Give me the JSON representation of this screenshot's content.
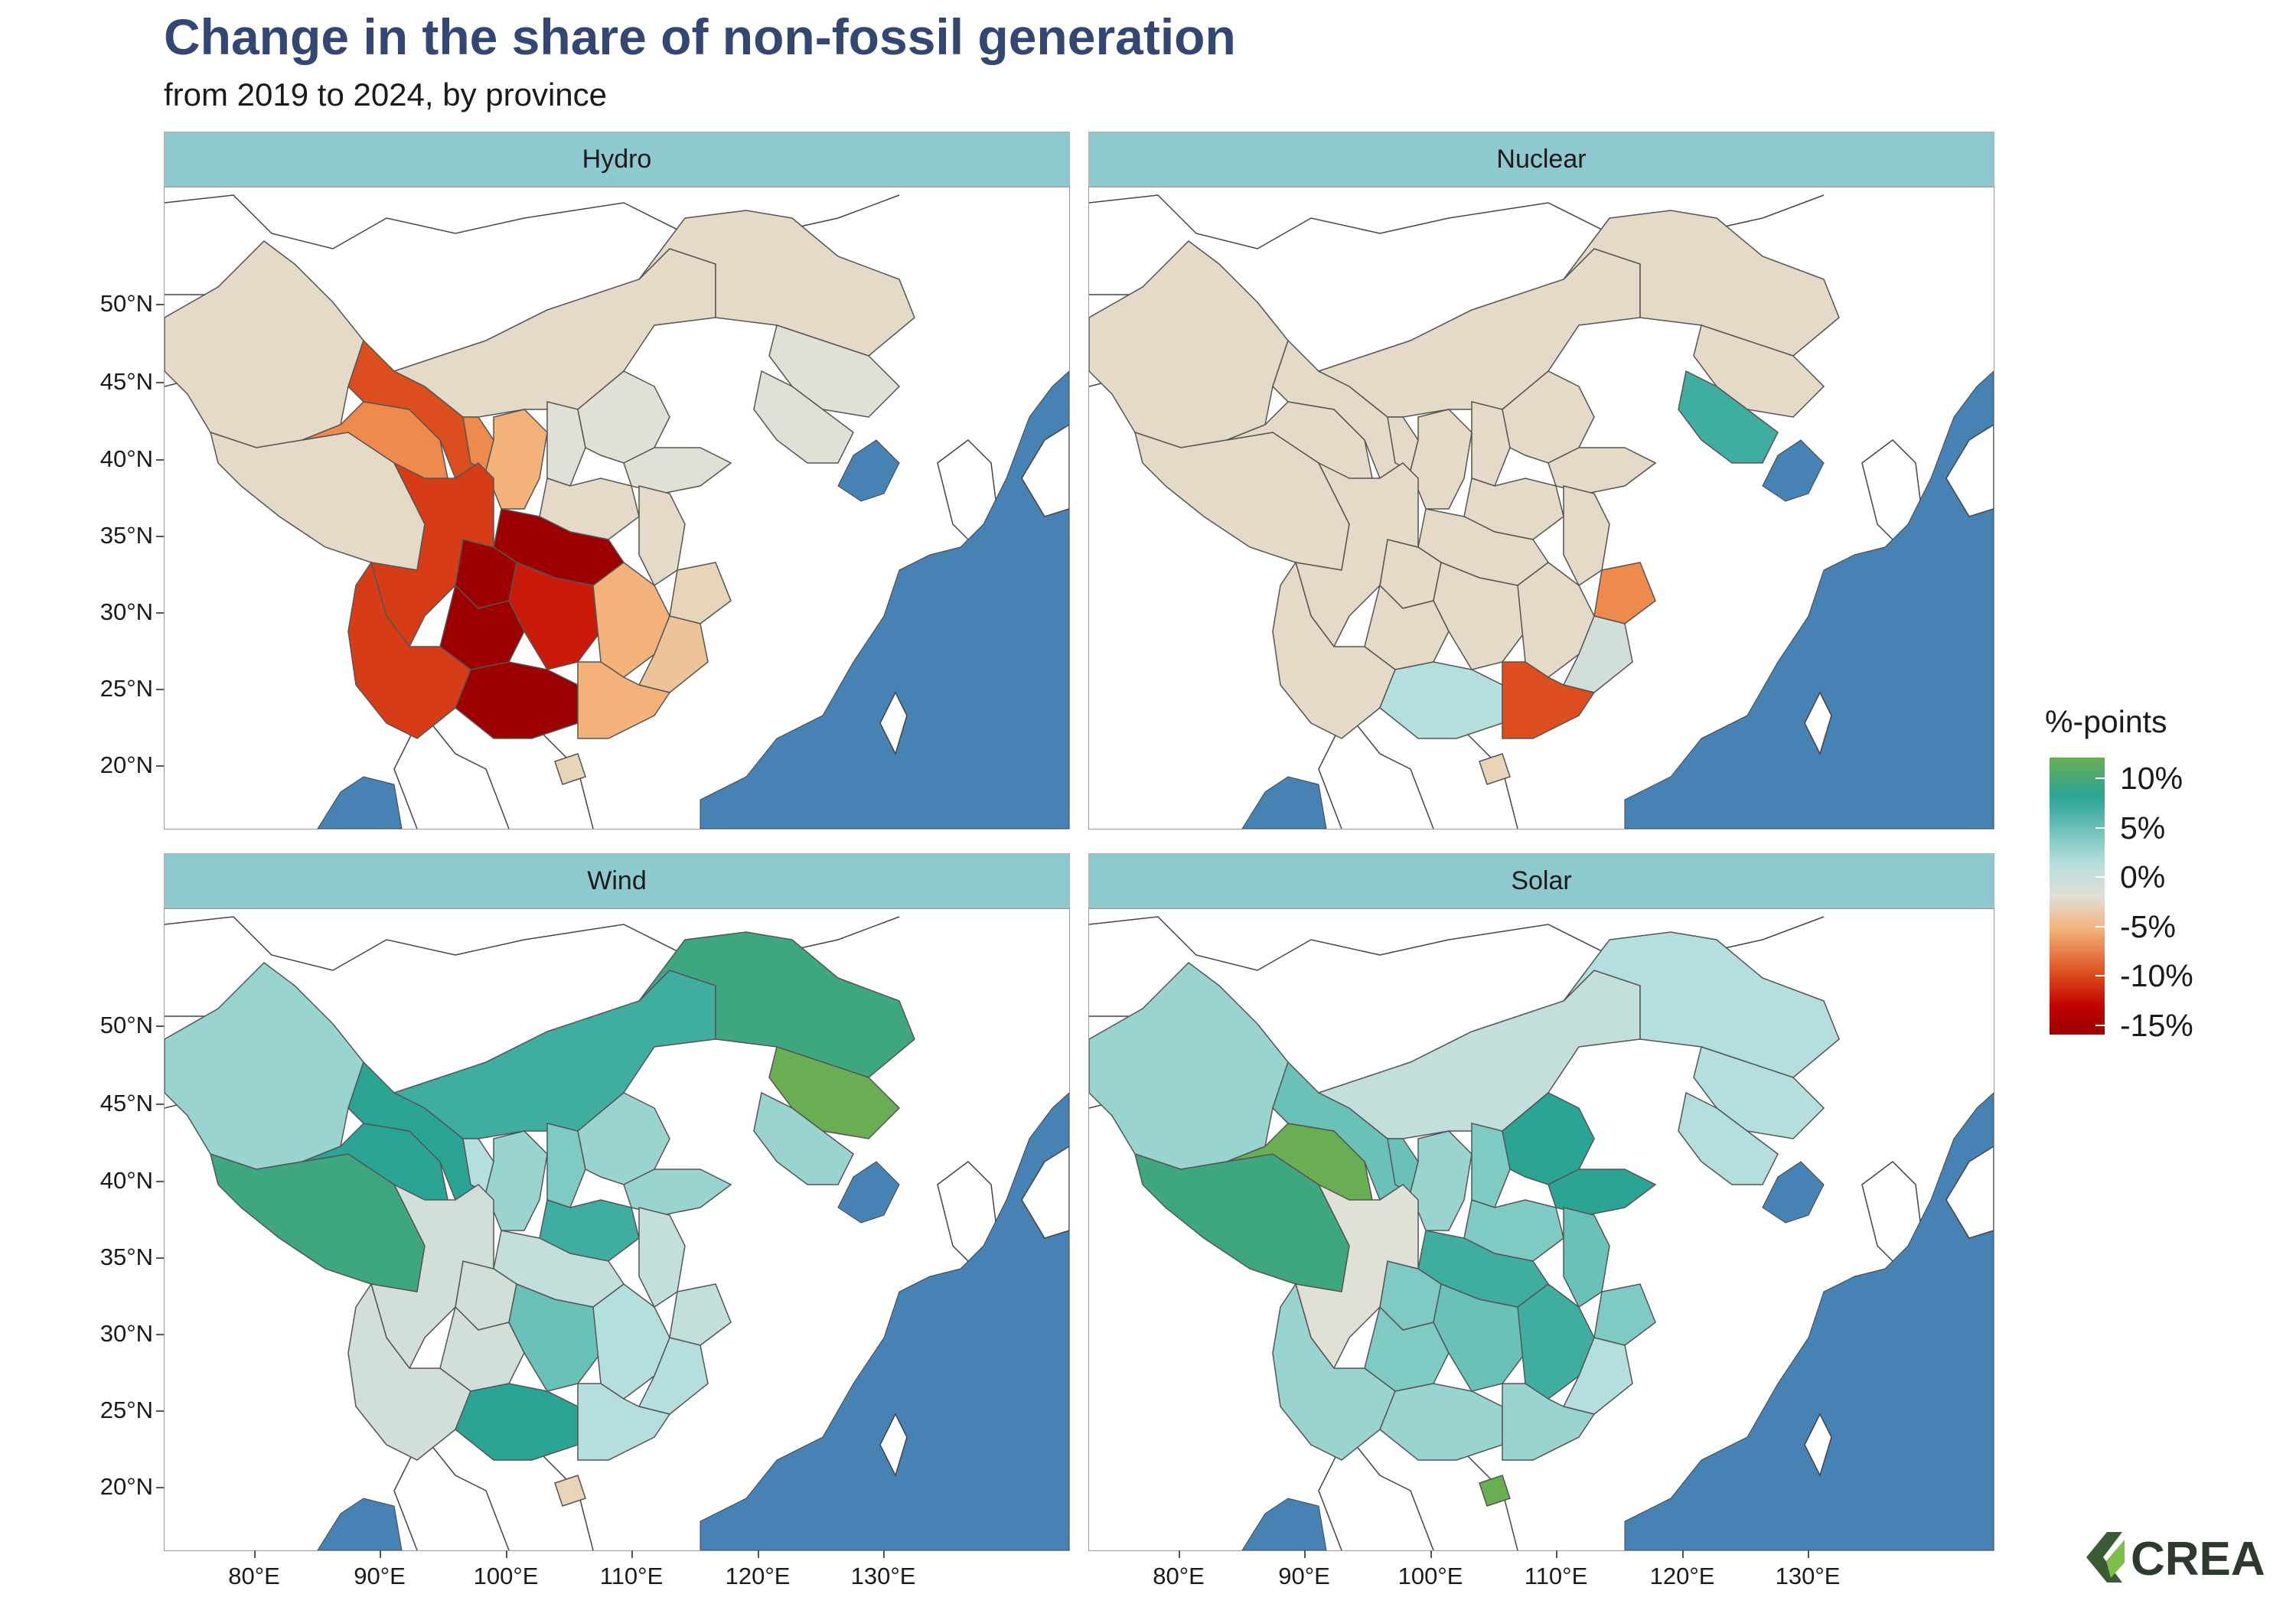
{
  "title": "Change in the share of non-fossil generation",
  "subtitle": "from 2019 to 2024, by province",
  "colors": {
    "sea": "#4682b4",
    "strip_bg": "#8fc9d0",
    "title": "#344772",
    "scale": [
      "#6aae53",
      "#2aa495",
      "#b5dede",
      "#e0e0d6",
      "#f2b27a",
      "#dc4e1d",
      "#c00000",
      "#9c0000"
    ]
  },
  "y_axis": [
    "50°N",
    "45°N",
    "40°N",
    "35°N",
    "30°N",
    "25°N",
    "20°N"
  ],
  "x_axis": [
    "80°E",
    "90°E",
    "100°E",
    "110°E",
    "120°E",
    "130°E"
  ],
  "panels": [
    {
      "label": "Hydro",
      "regions": {
        "xinjiang": -1,
        "tibet": -1,
        "inner_mongolia": -1,
        "heilongjiang": -1,
        "jilin": 0,
        "liaoning": 0,
        "gansu": -9,
        "qinghai": -6,
        "sichuan": -10,
        "yunnan": -10,
        "ningxia": -6,
        "shaanxi": -4,
        "shanxi": 0,
        "hebei": 0,
        "shandong": 0,
        "henan": -1,
        "hubei": -15,
        "chongqing": -15,
        "guizhou": -15,
        "guangxi": -15,
        "hunan": -12,
        "jiangxi": -4,
        "anhui": -1,
        "zhejiang": -2,
        "fujian": -3,
        "guangdong": -4,
        "hainan": -2
      }
    },
    {
      "label": "Nuclear",
      "regions": {
        "xinjiang": -1,
        "tibet": -1,
        "inner_mongolia": -1,
        "heilongjiang": -1,
        "jilin": -1,
        "liaoning": 8,
        "gansu": -1,
        "qinghai": -1,
        "sichuan": -1,
        "yunnan": -1,
        "ningxia": -1,
        "shaanxi": -1,
        "shanxi": -1,
        "hebei": -1,
        "shandong": -1,
        "henan": -1,
        "hubei": -1,
        "chongqing": -1,
        "guizhou": -1,
        "guangxi": 3,
        "hunan": -1,
        "jiangxi": -1,
        "anhui": -1,
        "zhejiang": -6,
        "fujian": 1,
        "guangdong": -9,
        "hainan": -2
      }
    },
    {
      "label": "Wind",
      "regions": {
        "xinjiang": 4,
        "tibet": 10,
        "inner_mongolia": 8,
        "heilongjiang": 10,
        "jilin": 12,
        "liaoning": 4,
        "gansu": 9,
        "qinghai": 9,
        "sichuan": 1,
        "yunnan": 1,
        "ningxia": 3,
        "shaanxi": 4,
        "shanxi": 5,
        "hebei": 4,
        "shandong": 4,
        "henan": 8,
        "hubei": 2,
        "chongqing": 1,
        "guizhou": 1,
        "guangxi": 9,
        "hunan": 6,
        "jiangxi": 3,
        "anhui": 2,
        "zhejiang": 2,
        "fujian": 3,
        "guangdong": 3,
        "hainan": -2
      }
    },
    {
      "label": "Solar",
      "regions": {
        "xinjiang": 4,
        "tibet": 10,
        "inner_mongolia": 2,
        "heilongjiang": 3,
        "jilin": 3,
        "liaoning": 3,
        "gansu": 6,
        "qinghai": 12,
        "sichuan": 0,
        "yunnan": 4,
        "ningxia": 6,
        "shaanxi": 4,
        "shanxi": 5,
        "hebei": 9,
        "shandong": 9,
        "henan": 5,
        "hubei": 8,
        "chongqing": 5,
        "guizhou": 5,
        "guangxi": 4,
        "hunan": 6,
        "jiangxi": 8,
        "anhui": 6,
        "zhejiang": 5,
        "fujian": 3,
        "guangdong": 4,
        "hainan": 12
      }
    }
  ],
  "legend": {
    "title": "%-points",
    "items": [
      {
        "label": "10%",
        "value": 10
      },
      {
        "label": "5%",
        "value": 5
      },
      {
        "label": "0%",
        "value": 0
      },
      {
        "label": "-5%",
        "value": -5
      },
      {
        "label": "-10%",
        "value": -10
      },
      {
        "label": "-15%",
        "value": -15
      }
    ]
  },
  "logo_text": "CREA"
}
